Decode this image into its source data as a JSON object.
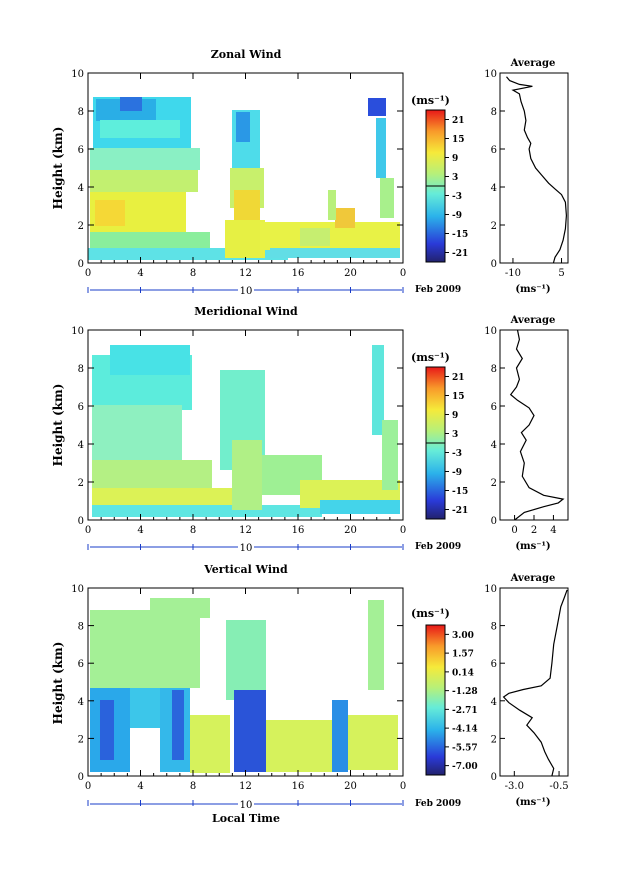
{
  "chart_data": [
    {
      "type": "heatmap",
      "title": "Zonal Wind",
      "ylabel": "Height (km)",
      "x_ticks": [
        "0",
        "4",
        "8",
        "12",
        "16",
        "20",
        "0"
      ],
      "y_ticks": [
        "0",
        "2",
        "4",
        "6",
        "8",
        "10"
      ],
      "xlim": [
        0,
        24
      ],
      "ylim": [
        0,
        10
      ],
      "date_bar_label": "10",
      "date_label": "Feb 2009",
      "colorbar": {
        "unit": "(ms⁻¹)",
        "ticks": [
          "21",
          "15",
          "9",
          "3",
          "-3",
          "-9",
          "-15",
          "-21"
        ]
      },
      "average": {
        "title": "Average",
        "unit": "(ms⁻¹)",
        "x_ticks": [
          "-10",
          "5"
        ],
        "xlim": [
          -14,
          7
        ],
        "x_tick_values": [
          -10,
          5
        ],
        "y_ticks": [
          "0",
          "2",
          "4",
          "6",
          "8",
          "10"
        ],
        "profile": [
          [
            2.5,
            0
          ],
          [
            3,
            0.3
          ],
          [
            4.5,
            0.7
          ],
          [
            5.5,
            1.2
          ],
          [
            6.2,
            1.8
          ],
          [
            6.5,
            2.5
          ],
          [
            6.2,
            3.2
          ],
          [
            5,
            3.6
          ],
          [
            3,
            3.9
          ],
          [
            1,
            4.2
          ],
          [
            -1,
            4.6
          ],
          [
            -3,
            5
          ],
          [
            -4.5,
            5.5
          ],
          [
            -5,
            6
          ],
          [
            -4.5,
            6.3
          ],
          [
            -5.5,
            6.6
          ],
          [
            -6.5,
            7
          ],
          [
            -6,
            7.5
          ],
          [
            -6.5,
            8
          ],
          [
            -7.5,
            8.5
          ],
          [
            -8,
            8.9
          ],
          [
            -10,
            9.1
          ],
          [
            -4,
            9.3
          ],
          [
            -8,
            9.4
          ],
          [
            -11,
            9.6
          ],
          [
            -12,
            9.8
          ]
        ]
      }
    },
    {
      "type": "heatmap",
      "title": "Meridional Wind",
      "ylabel": "Height (km)",
      "x_ticks": [
        "0",
        "4",
        "8",
        "12",
        "16",
        "20",
        "0"
      ],
      "y_ticks": [
        "0",
        "2",
        "4",
        "6",
        "8",
        "10"
      ],
      "xlim": [
        0,
        24
      ],
      "ylim": [
        0,
        10
      ],
      "date_bar_label": "10",
      "date_label": "Feb 2009",
      "colorbar": {
        "unit": "(ms⁻¹)",
        "ticks": [
          "21",
          "15",
          "9",
          "3",
          "-3",
          "-9",
          "-15",
          "-21"
        ]
      },
      "average": {
        "title": "Average",
        "unit": "(ms⁻¹)",
        "x_ticks": [
          "0",
          "2",
          "4"
        ],
        "xlim": [
          -1.5,
          5.5
        ],
        "x_tick_values": [
          0,
          2,
          4
        ],
        "y_ticks": [
          "0",
          "2",
          "4",
          "6",
          "8",
          "10"
        ],
        "profile": [
          [
            0,
            0
          ],
          [
            1,
            0.4
          ],
          [
            3,
            0.7
          ],
          [
            4.5,
            0.9
          ],
          [
            5,
            1.1
          ],
          [
            3,
            1.3
          ],
          [
            1.5,
            1.7
          ],
          [
            0.8,
            2.3
          ],
          [
            1,
            3
          ],
          [
            0.6,
            3.6
          ],
          [
            1.2,
            4.2
          ],
          [
            0.7,
            4.6
          ],
          [
            1.5,
            5
          ],
          [
            2,
            5.5
          ],
          [
            1.5,
            5.9
          ],
          [
            0.3,
            6.3
          ],
          [
            -0.4,
            6.6
          ],
          [
            0.2,
            7
          ],
          [
            0.5,
            7.4
          ],
          [
            0.2,
            8
          ],
          [
            0.8,
            8.5
          ],
          [
            0.2,
            9
          ],
          [
            0.5,
            9.5
          ],
          [
            0.3,
            10
          ]
        ]
      }
    },
    {
      "type": "heatmap",
      "title": "Vertical Wind",
      "ylabel": "Height (km)",
      "xlabel": "Local Time",
      "x_ticks": [
        "0",
        "4",
        "8",
        "12",
        "16",
        "20",
        "0"
      ],
      "y_ticks": [
        "0",
        "2",
        "4",
        "6",
        "8",
        "10"
      ],
      "xlim": [
        0,
        24
      ],
      "ylim": [
        0,
        10
      ],
      "date_bar_label": "10",
      "date_label": "Feb 2009",
      "colorbar": {
        "unit": "(ms⁻¹)",
        "ticks": [
          "3.00",
          "1.57",
          "0.14",
          "-1.28",
          "-2.71",
          "-4.14",
          "-5.57",
          "-7.00"
        ]
      },
      "average": {
        "title": "Average",
        "unit": "(ms⁻¹)",
        "x_ticks": [
          "-3.0",
          "-0.5"
        ],
        "xlim": [
          -3.8,
          0.0
        ],
        "x_tick_values": [
          -3.0,
          -0.5
        ],
        "y_ticks": [
          "0",
          "2",
          "4",
          "6",
          "8",
          "10"
        ],
        "profile": [
          [
            -0.9,
            0
          ],
          [
            -0.8,
            0.4
          ],
          [
            -1.1,
            0.9
          ],
          [
            -1.3,
            1.3
          ],
          [
            -1.5,
            1.8
          ],
          [
            -1.9,
            2.3
          ],
          [
            -2.3,
            2.7
          ],
          [
            -2.0,
            3.1
          ],
          [
            -2.7,
            3.5
          ],
          [
            -3.3,
            3.9
          ],
          [
            -3.6,
            4.2
          ],
          [
            -3.3,
            4.4
          ],
          [
            -2.5,
            4.6
          ],
          [
            -1.5,
            4.8
          ],
          [
            -1.0,
            5.2
          ],
          [
            -0.9,
            6
          ],
          [
            -0.8,
            7
          ],
          [
            -0.6,
            8
          ],
          [
            -0.4,
            9
          ],
          [
            -0.2,
            9.5
          ],
          [
            -0.05,
            9.9
          ]
        ]
      }
    }
  ]
}
